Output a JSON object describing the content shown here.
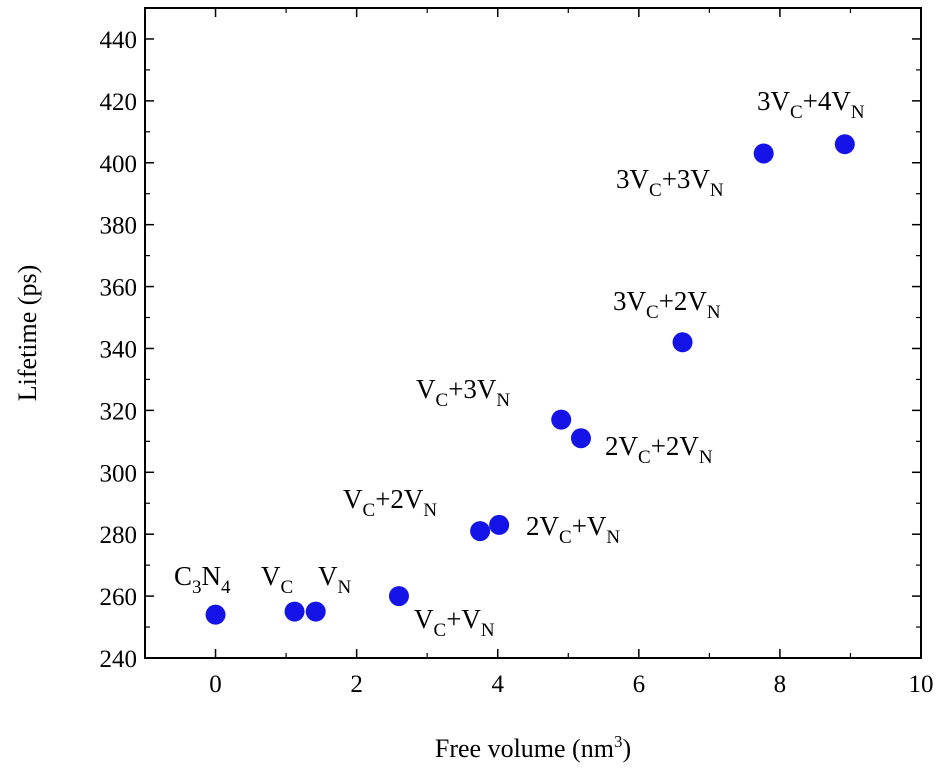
{
  "chart_data": {
    "type": "scatter",
    "xlabel": "Free volume (nm",
    "xlabel_sup": "3",
    "xlabel_end": ")",
    "ylabel": "Lifetime (ps)",
    "xlim": [
      -1,
      10
    ],
    "ylim": [
      240,
      450
    ],
    "x_ticks": [
      0,
      2,
      4,
      6,
      8,
      10
    ],
    "y_ticks": [
      240,
      260,
      280,
      300,
      320,
      340,
      360,
      380,
      400,
      420,
      440
    ],
    "grid": false,
    "marker_color": "#1414e8",
    "points": [
      {
        "x": 0.0,
        "y": 254,
        "label": [
          [
            "t",
            "C"
          ],
          [
            "sub",
            "3"
          ],
          [
            "t",
            "N"
          ],
          [
            "sub",
            "4"
          ]
        ]
      },
      {
        "x": 1.12,
        "y": 255,
        "label": [
          [
            "t",
            "V"
          ],
          [
            "sub",
            "C"
          ]
        ]
      },
      {
        "x": 1.42,
        "y": 255,
        "label": [
          [
            "t",
            "V"
          ],
          [
            "sub",
            "N"
          ]
        ]
      },
      {
        "x": 2.6,
        "y": 260,
        "label": [
          [
            "t",
            "V"
          ],
          [
            "sub",
            "C"
          ],
          [
            "t",
            "+V"
          ],
          [
            "sub",
            "N"
          ]
        ]
      },
      {
        "x": 3.75,
        "y": 281,
        "label": [
          [
            "t",
            "V"
          ],
          [
            "sub",
            "C"
          ],
          [
            "t",
            "+2V"
          ],
          [
            "sub",
            "N"
          ]
        ]
      },
      {
        "x": 4.02,
        "y": 283,
        "label": [
          [
            "t",
            "2V"
          ],
          [
            "sub",
            "C"
          ],
          [
            "t",
            "+V"
          ],
          [
            "sub",
            "N"
          ]
        ]
      },
      {
        "x": 4.9,
        "y": 317,
        "label": [
          [
            "t",
            "V"
          ],
          [
            "sub",
            "C"
          ],
          [
            "t",
            "+3V"
          ],
          [
            "sub",
            "N"
          ]
        ]
      },
      {
        "x": 5.18,
        "y": 311,
        "label": [
          [
            "t",
            "2V"
          ],
          [
            "sub",
            "C"
          ],
          [
            "t",
            "+2V"
          ],
          [
            "sub",
            "N"
          ]
        ]
      },
      {
        "x": 6.62,
        "y": 342,
        "label": [
          [
            "t",
            "3V"
          ],
          [
            "sub",
            "C"
          ],
          [
            "t",
            "+2V"
          ],
          [
            "sub",
            "N"
          ]
        ]
      },
      {
        "x": 7.77,
        "y": 403,
        "label": [
          [
            "t",
            "3V"
          ],
          [
            "sub",
            "C"
          ],
          [
            "t",
            "+3V"
          ],
          [
            "sub",
            "N"
          ]
        ]
      },
      {
        "x": 8.92,
        "y": 406,
        "label": [
          [
            "t",
            "3V"
          ],
          [
            "sub",
            "C"
          ],
          [
            "t",
            "+4V"
          ],
          [
            "sub",
            "N"
          ]
        ]
      }
    ]
  }
}
